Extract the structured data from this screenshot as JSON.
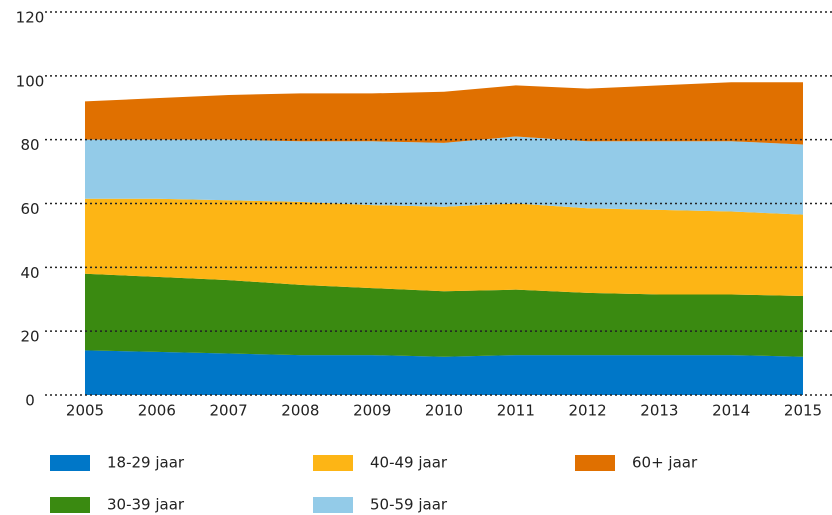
{
  "chart_data": {
    "type": "stacked_area",
    "categories": [
      "2005",
      "2006",
      "2007",
      "2008",
      "2009",
      "2010",
      "2011",
      "2012",
      "2013",
      "2014",
      "2015"
    ],
    "series": [
      {
        "name": "18-29 jaar",
        "color": "#0077c8",
        "values": [
          14,
          13.5,
          13,
          12.5,
          12.5,
          12,
          12.5,
          12.5,
          12.5,
          12.5,
          12
        ]
      },
      {
        "name": "30-39 jaar",
        "color": "#3a8a11",
        "values": [
          24,
          23.5,
          23,
          22,
          21,
          20.5,
          20.5,
          19.5,
          19,
          19,
          19
        ]
      },
      {
        "name": "40-49 jaar",
        "color": "#fdb515",
        "values": [
          23.5,
          24.5,
          25,
          26,
          26,
          26.5,
          27,
          26.5,
          26.5,
          26,
          25.5
        ]
      },
      {
        "name": "50-59 jaar",
        "color": "#93cbe8",
        "values": [
          18.5,
          18.5,
          19,
          19,
          20,
          20,
          21,
          21,
          21.5,
          22,
          22
        ]
      },
      {
        "name": "60+ jaar",
        "color": "#e07000",
        "values": [
          12,
          13,
          14,
          15,
          15,
          16,
          16,
          16.5,
          17.5,
          18.5,
          19.5
        ]
      }
    ],
    "ylim": [
      0,
      120
    ],
    "yticks": [
      0,
      20,
      40,
      60,
      80,
      100,
      120
    ],
    "grid": true
  }
}
